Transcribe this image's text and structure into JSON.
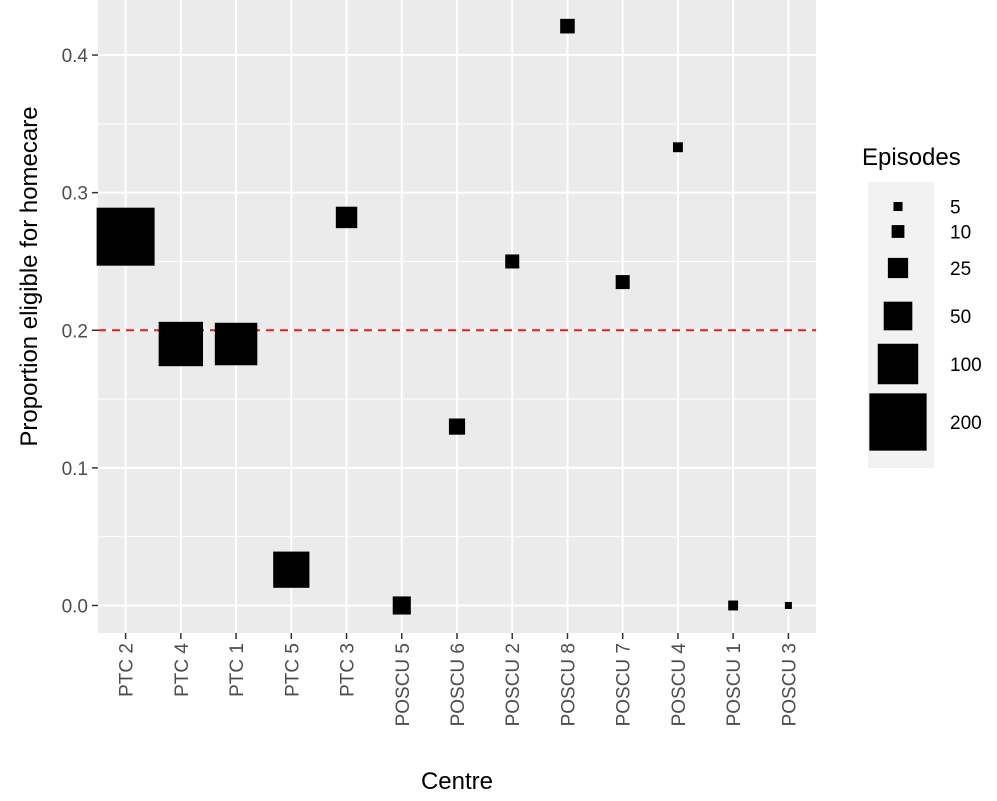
{
  "chart_data": {
    "type": "scatter",
    "title": "",
    "xlabel": "Centre",
    "ylabel": "Proportion eligible for homecare",
    "categories": [
      "PTC 2",
      "PTC 4",
      "PTC 1",
      "PTC 5",
      "PTC 3",
      "POSCU 5",
      "POSCU 6",
      "POSCU 2",
      "POSCU 8",
      "POSCU 7",
      "POSCU 4",
      "POSCU 1",
      "POSCU 3"
    ],
    "y_ticks": [
      "0.0",
      "0.1",
      "0.2",
      "0.3",
      "0.4"
    ],
    "ylim": [
      -0.02,
      0.44
    ],
    "grid": true,
    "reference_line": {
      "y": 0.2,
      "color": "#e41a1c",
      "style": "dashed"
    },
    "points": [
      {
        "x": "PTC 2",
        "y": 0.268,
        "episodes": 205
      },
      {
        "x": "PTC 4",
        "y": 0.19,
        "episodes": 120
      },
      {
        "x": "PTC 1",
        "y": 0.19,
        "episodes": 110
      },
      {
        "x": "PTC 5",
        "y": 0.026,
        "episodes": 80
      },
      {
        "x": "PTC 3",
        "y": 0.282,
        "episodes": 28
      },
      {
        "x": "POSCU 5",
        "y": 0.0,
        "episodes": 20
      },
      {
        "x": "POSCU 6",
        "y": 0.13,
        "episodes": 16
      },
      {
        "x": "POSCU 2",
        "y": 0.25,
        "episodes": 12
      },
      {
        "x": "POSCU 8",
        "y": 0.421,
        "episodes": 13
      },
      {
        "x": "POSCU 7",
        "y": 0.235,
        "episodes": 12
      },
      {
        "x": "POSCU 4",
        "y": 0.333,
        "episodes": 6
      },
      {
        "x": "POSCU 1",
        "y": 0.0,
        "episodes": 6
      },
      {
        "x": "POSCU 3",
        "y": 0.0,
        "episodes": 3
      }
    ],
    "size_legend": {
      "title": "Episodes",
      "position": "right",
      "entries": [
        {
          "label": "5",
          "value": 5
        },
        {
          "label": "10",
          "value": 10
        },
        {
          "label": "25",
          "value": 25
        },
        {
          "label": "50",
          "value": 50
        },
        {
          "label": "100",
          "value": 100
        },
        {
          "label": "200",
          "value": 200
        }
      ]
    },
    "colors": {
      "panel": "#ebebeb",
      "grid_major": "#ffffff",
      "point": "#000000",
      "legend_key_bg": "#f2f2f2"
    }
  }
}
